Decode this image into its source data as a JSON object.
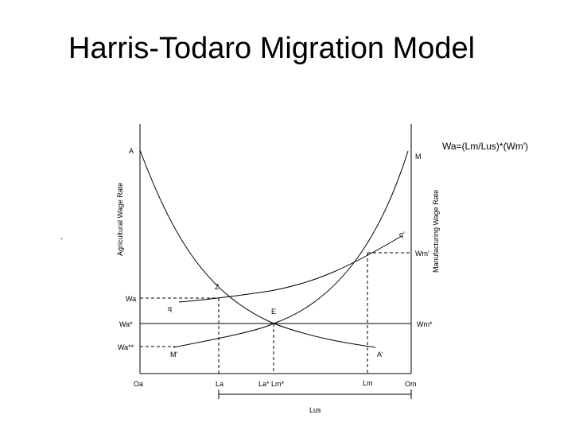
{
  "title": "Harris-Todaro Migration Model",
  "diagram": {
    "left_axis_label": "Agricultural Wage Rate",
    "right_axis_label": "Manufacturing Wage Rate",
    "formula": "Wa=(Lm/Lus)*(Wm')",
    "left_wage_labels": {
      "wa": "Wa",
      "wa_star": "Wa*",
      "wa_2star": "Wa**"
    },
    "right_wage_labels": {
      "wm_prime": "Wm'",
      "wm_star": "Wm*"
    },
    "curve_labels": {
      "A": "A",
      "A_prime": "A'",
      "M": "M",
      "M_prime": "M'",
      "q": "q",
      "q_prime": "q'"
    },
    "point_labels": {
      "Z": "Z",
      "E": "E"
    },
    "x_labels": {
      "oa": "Oa",
      "la": "La",
      "la_lm_star": "La* Lm*",
      "lm": "Lm",
      "om": "Om"
    },
    "bracket_label": "Lus",
    "stray_mark": "-"
  }
}
